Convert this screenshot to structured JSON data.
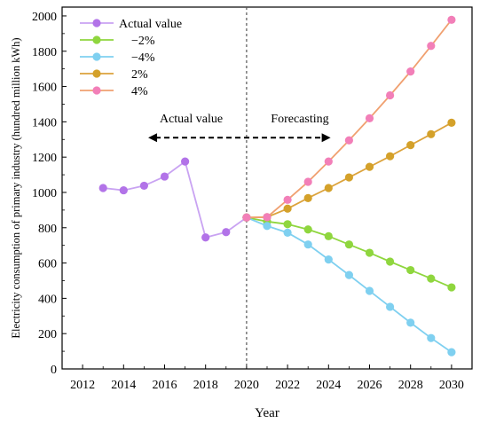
{
  "chart_data": {
    "type": "line",
    "xlabel": "Year",
    "ylabel": "Electricity consumption of primary industry (hundred million kWh)",
    "xlim": [
      2011,
      2031
    ],
    "ylim": [
      0,
      2050
    ],
    "xticks": [
      2012,
      2014,
      2016,
      2018,
      2020,
      2022,
      2024,
      2026,
      2028,
      2030
    ],
    "yticks": [
      0,
      200,
      400,
      600,
      800,
      1000,
      1200,
      1400,
      1600,
      1800,
      2000
    ],
    "legend_position": "top-left",
    "annotations": {
      "left_label": "Actual value",
      "right_label": "Forecasting",
      "divider_year": 2020,
      "arrow_span": [
        2015.2,
        2024.1
      ],
      "arrow_y": 1310
    },
    "series": [
      {
        "name": "Actual value",
        "line_color": "#c9a3f2",
        "marker_color": "#b273e8",
        "points": [
          [
            2013,
            1025
          ],
          [
            2014,
            1012
          ],
          [
            2015,
            1038
          ],
          [
            2016,
            1090
          ],
          [
            2017,
            1175
          ],
          [
            2018,
            745
          ],
          [
            2019,
            775
          ],
          [
            2020,
            858
          ]
        ]
      },
      {
        "name": "−2%",
        "line_color": "#8fd63e",
        "marker_color": "#8fd63e",
        "points": [
          [
            2020,
            858
          ],
          [
            2021,
            835
          ],
          [
            2022,
            820
          ],
          [
            2023,
            790
          ],
          [
            2024,
            752
          ],
          [
            2025,
            705
          ],
          [
            2026,
            658
          ],
          [
            2027,
            608
          ],
          [
            2028,
            560
          ],
          [
            2029,
            512
          ],
          [
            2030,
            462
          ]
        ]
      },
      {
        "name": "−4%",
        "line_color": "#7fd0f0",
        "marker_color": "#7fd0f0",
        "points": [
          [
            2020,
            858
          ],
          [
            2021,
            810
          ],
          [
            2022,
            772
          ],
          [
            2023,
            705
          ],
          [
            2024,
            620
          ],
          [
            2025,
            532
          ],
          [
            2026,
            442
          ],
          [
            2027,
            352
          ],
          [
            2028,
            262
          ],
          [
            2029,
            175
          ],
          [
            2030,
            95
          ]
        ]
      },
      {
        "name": "2%",
        "line_color": "#dca33c",
        "marker_color": "#d4a12a",
        "points": [
          [
            2020,
            858
          ],
          [
            2021,
            860
          ],
          [
            2022,
            908
          ],
          [
            2023,
            968
          ],
          [
            2024,
            1025
          ],
          [
            2025,
            1085
          ],
          [
            2026,
            1145
          ],
          [
            2027,
            1205
          ],
          [
            2028,
            1268
          ],
          [
            2029,
            1330
          ],
          [
            2030,
            1395
          ]
        ]
      },
      {
        "name": "4%",
        "line_color": "#f0a070",
        "marker_color": "#f27fb8",
        "points": [
          [
            2020,
            858
          ],
          [
            2021,
            860
          ],
          [
            2022,
            958
          ],
          [
            2023,
            1060
          ],
          [
            2024,
            1175
          ],
          [
            2025,
            1295
          ],
          [
            2026,
            1420
          ],
          [
            2027,
            1550
          ],
          [
            2028,
            1685
          ],
          [
            2029,
            1830
          ],
          [
            2030,
            1978
          ]
        ]
      }
    ]
  }
}
